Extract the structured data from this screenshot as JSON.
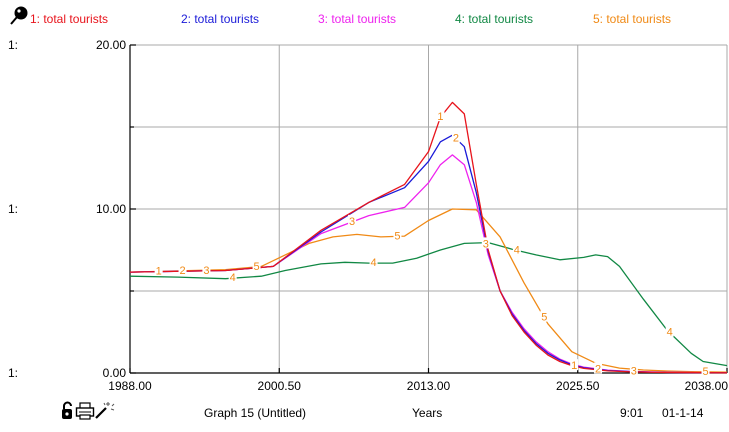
{
  "window": {
    "graph_title": "Graph 15 (Untitled)",
    "x_axis_label": "Years",
    "time": "9:01",
    "date": "01-1-14"
  },
  "toolbar": {
    "pin_icon": "pushpin-icon",
    "lock_icon": "unlock-icon",
    "print_icon": "printer-icon",
    "wand_icon": "magic-wand-icon"
  },
  "colors": {
    "s1": "#e8141c",
    "s2": "#1a1ad8",
    "s3": "#ee22ee",
    "s4": "#118844",
    "s5": "#f08a16",
    "grid": "#a8a8a8"
  },
  "chart_data": {
    "type": "line",
    "xlim": [
      1988,
      2038
    ],
    "ylim": [
      0,
      20
    ],
    "grid": true,
    "legend_placement": "top",
    "x_ticks": [
      "1988.00",
      "2000.50",
      "2013.00",
      "2025.50",
      "2038.00"
    ],
    "y_axis_prefix": "1:",
    "y_ticks": [
      "0.00",
      "10.00",
      "20.00"
    ],
    "series": [
      {
        "name": "1: total tourists",
        "marker": "1",
        "x": [
          1988,
          1996,
          2000,
          2004,
          2008,
          2011,
          2013,
          2014,
          2015,
          2016,
          2017,
          2018,
          2019,
          2020,
          2021,
          2022,
          2023,
          2024,
          2025,
          2026,
          2028,
          2030,
          2033,
          2038
        ],
        "y": [
          6.15,
          6.25,
          6.5,
          8.7,
          10.4,
          11.5,
          13.5,
          15.6,
          16.5,
          15.8,
          11.5,
          7.5,
          5.0,
          3.5,
          2.5,
          1.7,
          1.1,
          0.7,
          0.45,
          0.28,
          0.13,
          0.07,
          0.03,
          0.01
        ],
        "marker_x": [
          1990.4,
          2014.0,
          2025.2
        ]
      },
      {
        "name": "2: total tourists",
        "marker": "2",
        "x": [
          1988,
          1996,
          2000,
          2004,
          2008,
          2011,
          2013,
          2014,
          2015,
          2016,
          2017,
          2018,
          2019,
          2020,
          2021,
          2022,
          2023,
          2024,
          2025,
          2026,
          2028,
          2030,
          2033,
          2038
        ],
        "y": [
          6.15,
          6.25,
          6.5,
          8.6,
          10.4,
          11.3,
          12.9,
          14.1,
          14.5,
          13.8,
          11.0,
          7.4,
          5.0,
          3.6,
          2.6,
          1.8,
          1.2,
          0.8,
          0.5,
          0.32,
          0.15,
          0.08,
          0.03,
          0.01
        ],
        "marker_x": [
          1992.4,
          2015.3,
          2027.2
        ]
      },
      {
        "name": "3: total tourists",
        "marker": "3",
        "x": [
          1988,
          1996,
          2000,
          2004,
          2008,
          2011,
          2013,
          2014,
          2015,
          2016,
          2017,
          2018,
          2019,
          2020,
          2021,
          2022,
          2023,
          2024,
          2025,
          2026,
          2028,
          2030,
          2033,
          2038
        ],
        "y": [
          6.15,
          6.25,
          6.5,
          8.5,
          9.6,
          10.1,
          11.6,
          12.7,
          13.3,
          12.7,
          10.4,
          7.2,
          5.0,
          3.7,
          2.7,
          1.9,
          1.3,
          0.85,
          0.55,
          0.36,
          0.17,
          0.09,
          0.04,
          0.01
        ],
        "marker_x": [
          1994.4,
          2006.6,
          2017.8,
          2030.2
        ]
      },
      {
        "name": "4: total tourists",
        "marker": "4",
        "x": [
          1988,
          1992,
          1996,
          1999,
          2001,
          2004,
          2006,
          2008,
          2010,
          2012,
          2014,
          2016,
          2018,
          2020,
          2022,
          2024,
          2026,
          2027,
          2028,
          2029,
          2031,
          2033,
          2035,
          2036,
          2038
        ],
        "y": [
          5.9,
          5.85,
          5.75,
          5.9,
          6.25,
          6.65,
          6.75,
          6.7,
          6.7,
          7.0,
          7.5,
          7.9,
          7.95,
          7.55,
          7.2,
          6.9,
          7.05,
          7.2,
          7.1,
          6.5,
          4.5,
          2.6,
          1.2,
          0.7,
          0.45
        ],
        "marker_x": [
          1996.6,
          2008.4,
          2020.4,
          2033.2
        ]
      },
      {
        "name": "5: total tourists",
        "marker": "5",
        "x": [
          1988,
          1996,
          1999,
          2001,
          2003,
          2005,
          2007,
          2009,
          2011,
          2013,
          2015,
          2017,
          2019,
          2021,
          2023,
          2025,
          2027,
          2029,
          2031,
          2033,
          2035,
          2038
        ],
        "y": [
          6.15,
          6.3,
          6.5,
          7.2,
          7.9,
          8.3,
          8.45,
          8.3,
          8.35,
          9.3,
          10.0,
          9.95,
          8.3,
          5.5,
          3.0,
          1.3,
          0.6,
          0.3,
          0.18,
          0.12,
          0.08,
          0.05
        ],
        "marker_x": [
          1998.6,
          2010.4,
          2022.7,
          2036.2
        ]
      }
    ]
  }
}
